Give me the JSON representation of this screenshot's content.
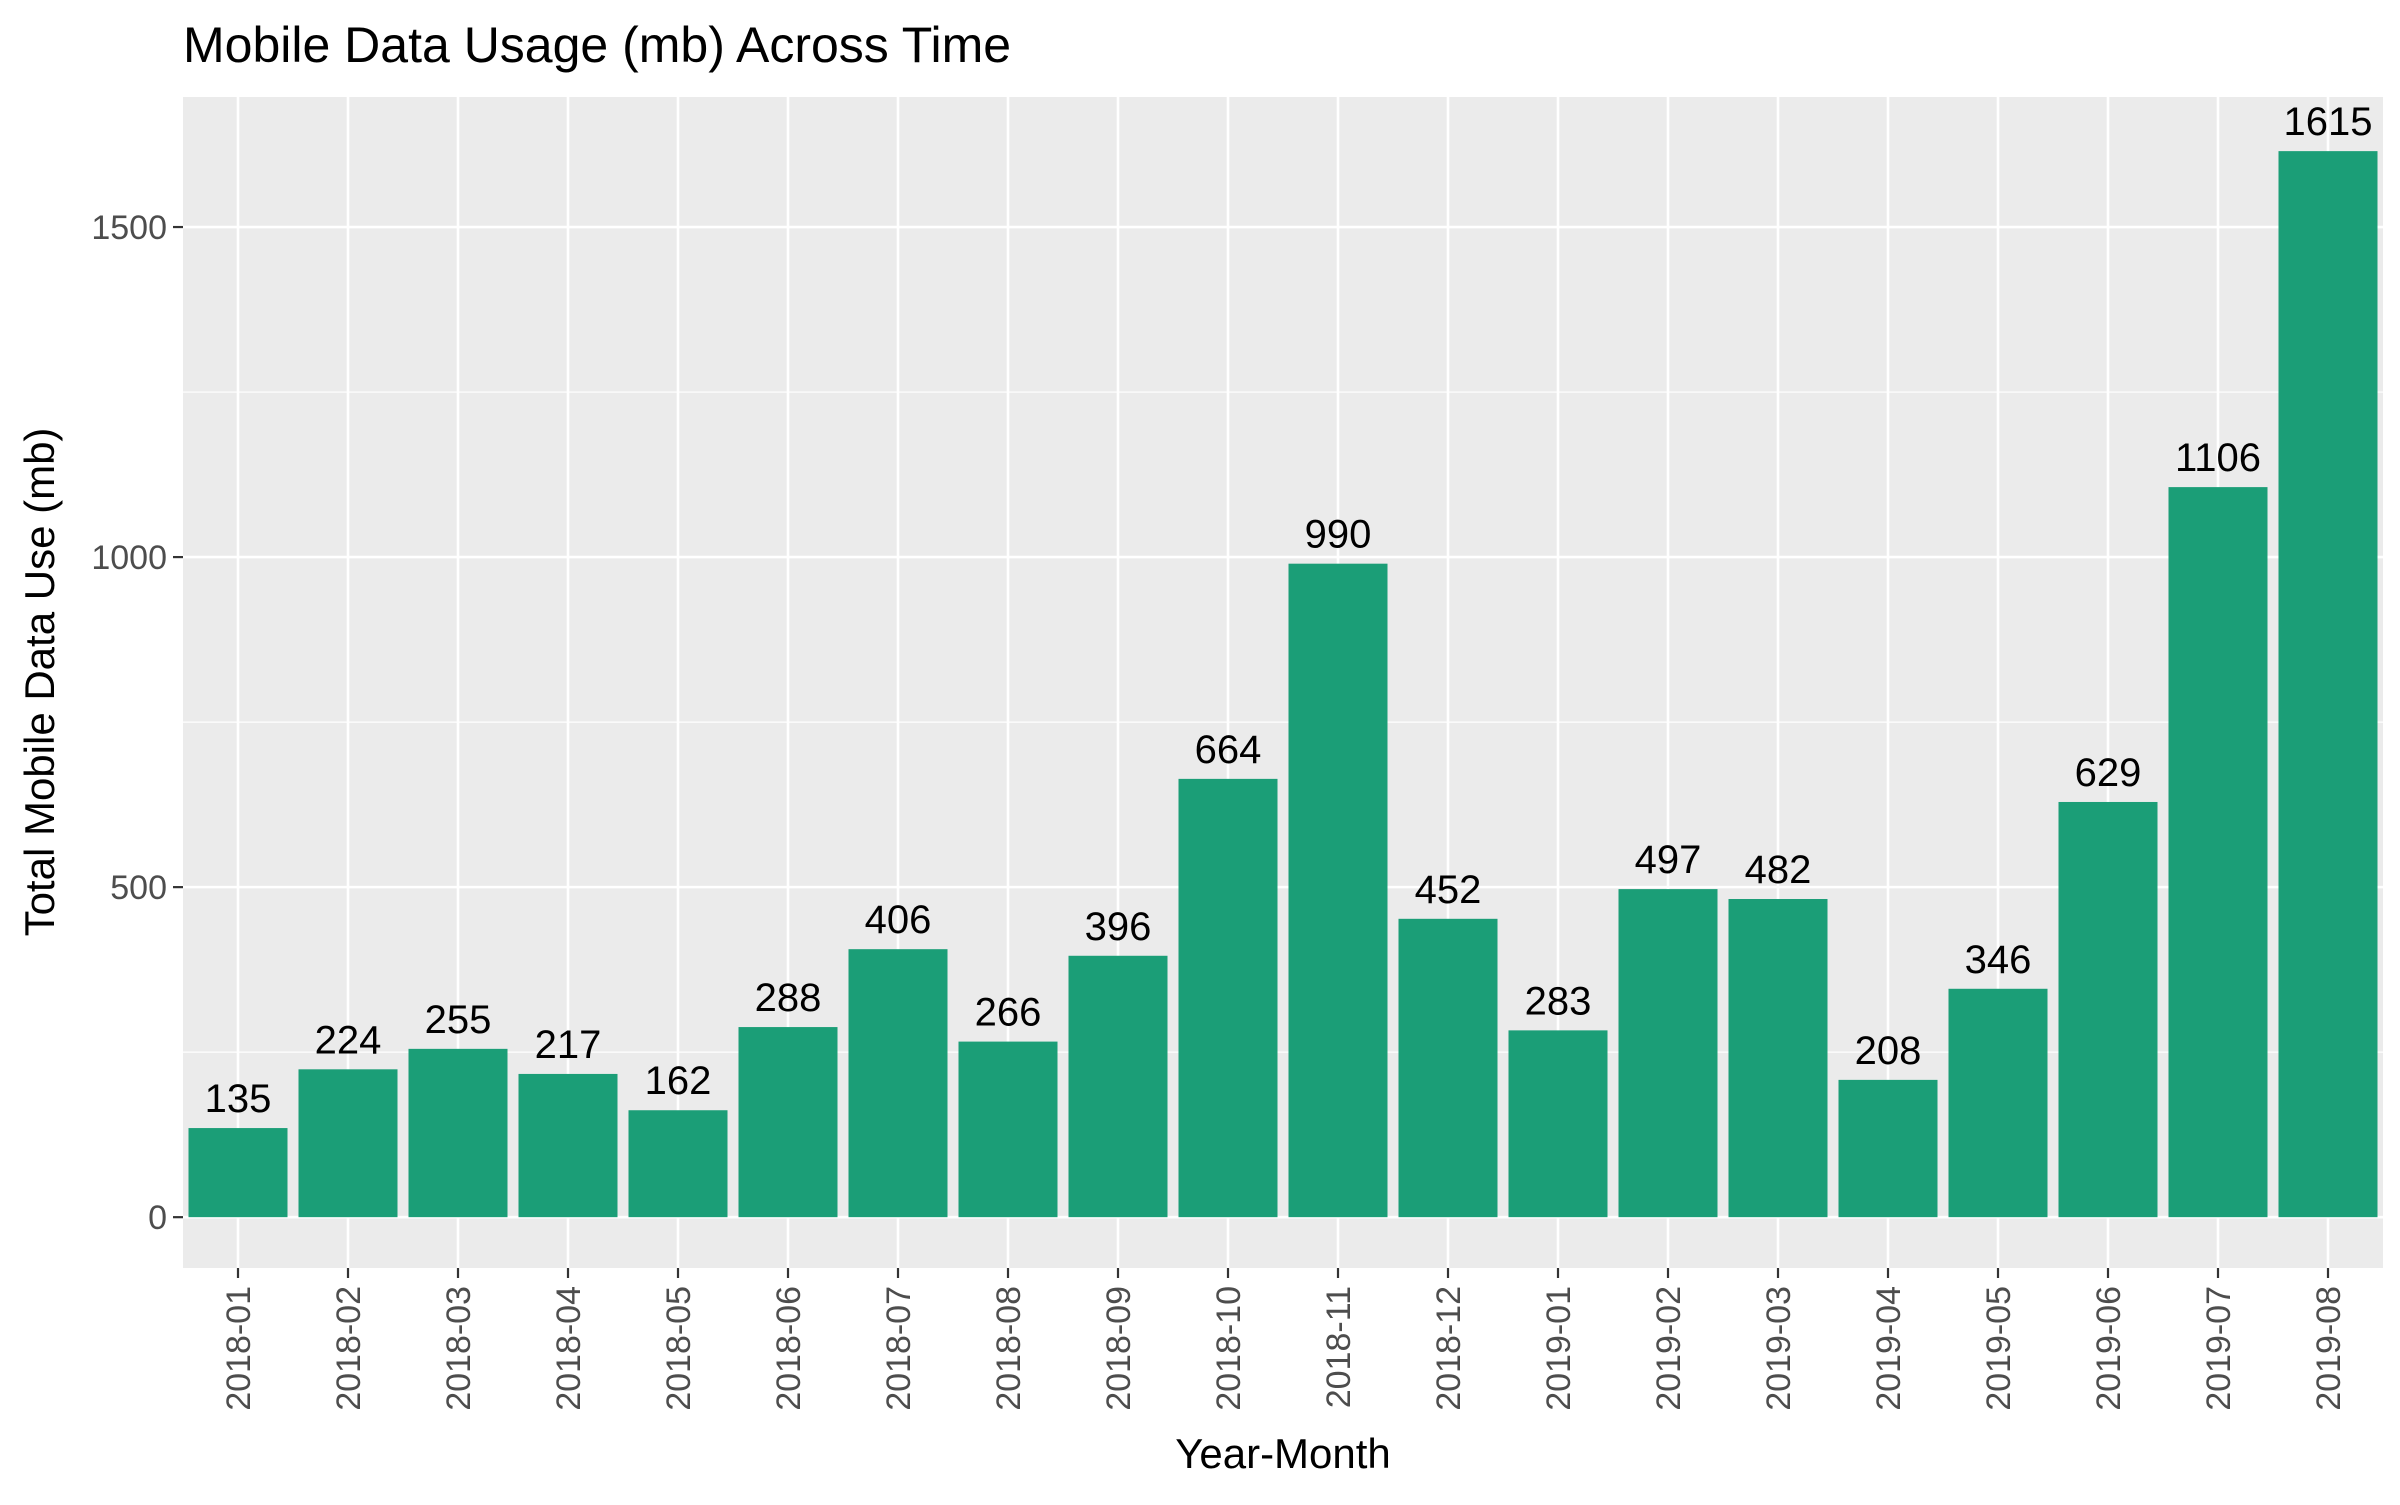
{
  "chart_data": {
    "type": "bar",
    "title": "Mobile Data Usage (mb) Across Time",
    "xlabel": "Year-Month",
    "ylabel": "Total Mobile Data Use (mb)",
    "categories": [
      "2018-01",
      "2018-02",
      "2018-03",
      "2018-04",
      "2018-05",
      "2018-06",
      "2018-07",
      "2018-08",
      "2018-09",
      "2018-10",
      "2018-11",
      "2018-12",
      "2019-01",
      "2019-02",
      "2019-03",
      "2019-04",
      "2019-05",
      "2019-06",
      "2019-07",
      "2019-08"
    ],
    "values": [
      135,
      224,
      255,
      217,
      162,
      288,
      406,
      266,
      396,
      664,
      990,
      452,
      283,
      497,
      482,
      208,
      346,
      629,
      1106,
      1615
    ],
    "ylim": [
      -77,
      1697
    ],
    "yticks": [
      0,
      500,
      1000,
      1500
    ],
    "grid": true,
    "legend": "none",
    "colors": {
      "bar": "#1B9E77",
      "panel": "#EBEBEB",
      "grid_major": "#FFFFFF",
      "tick_text": "#4D4D4D",
      "label_text": "#000000"
    }
  }
}
